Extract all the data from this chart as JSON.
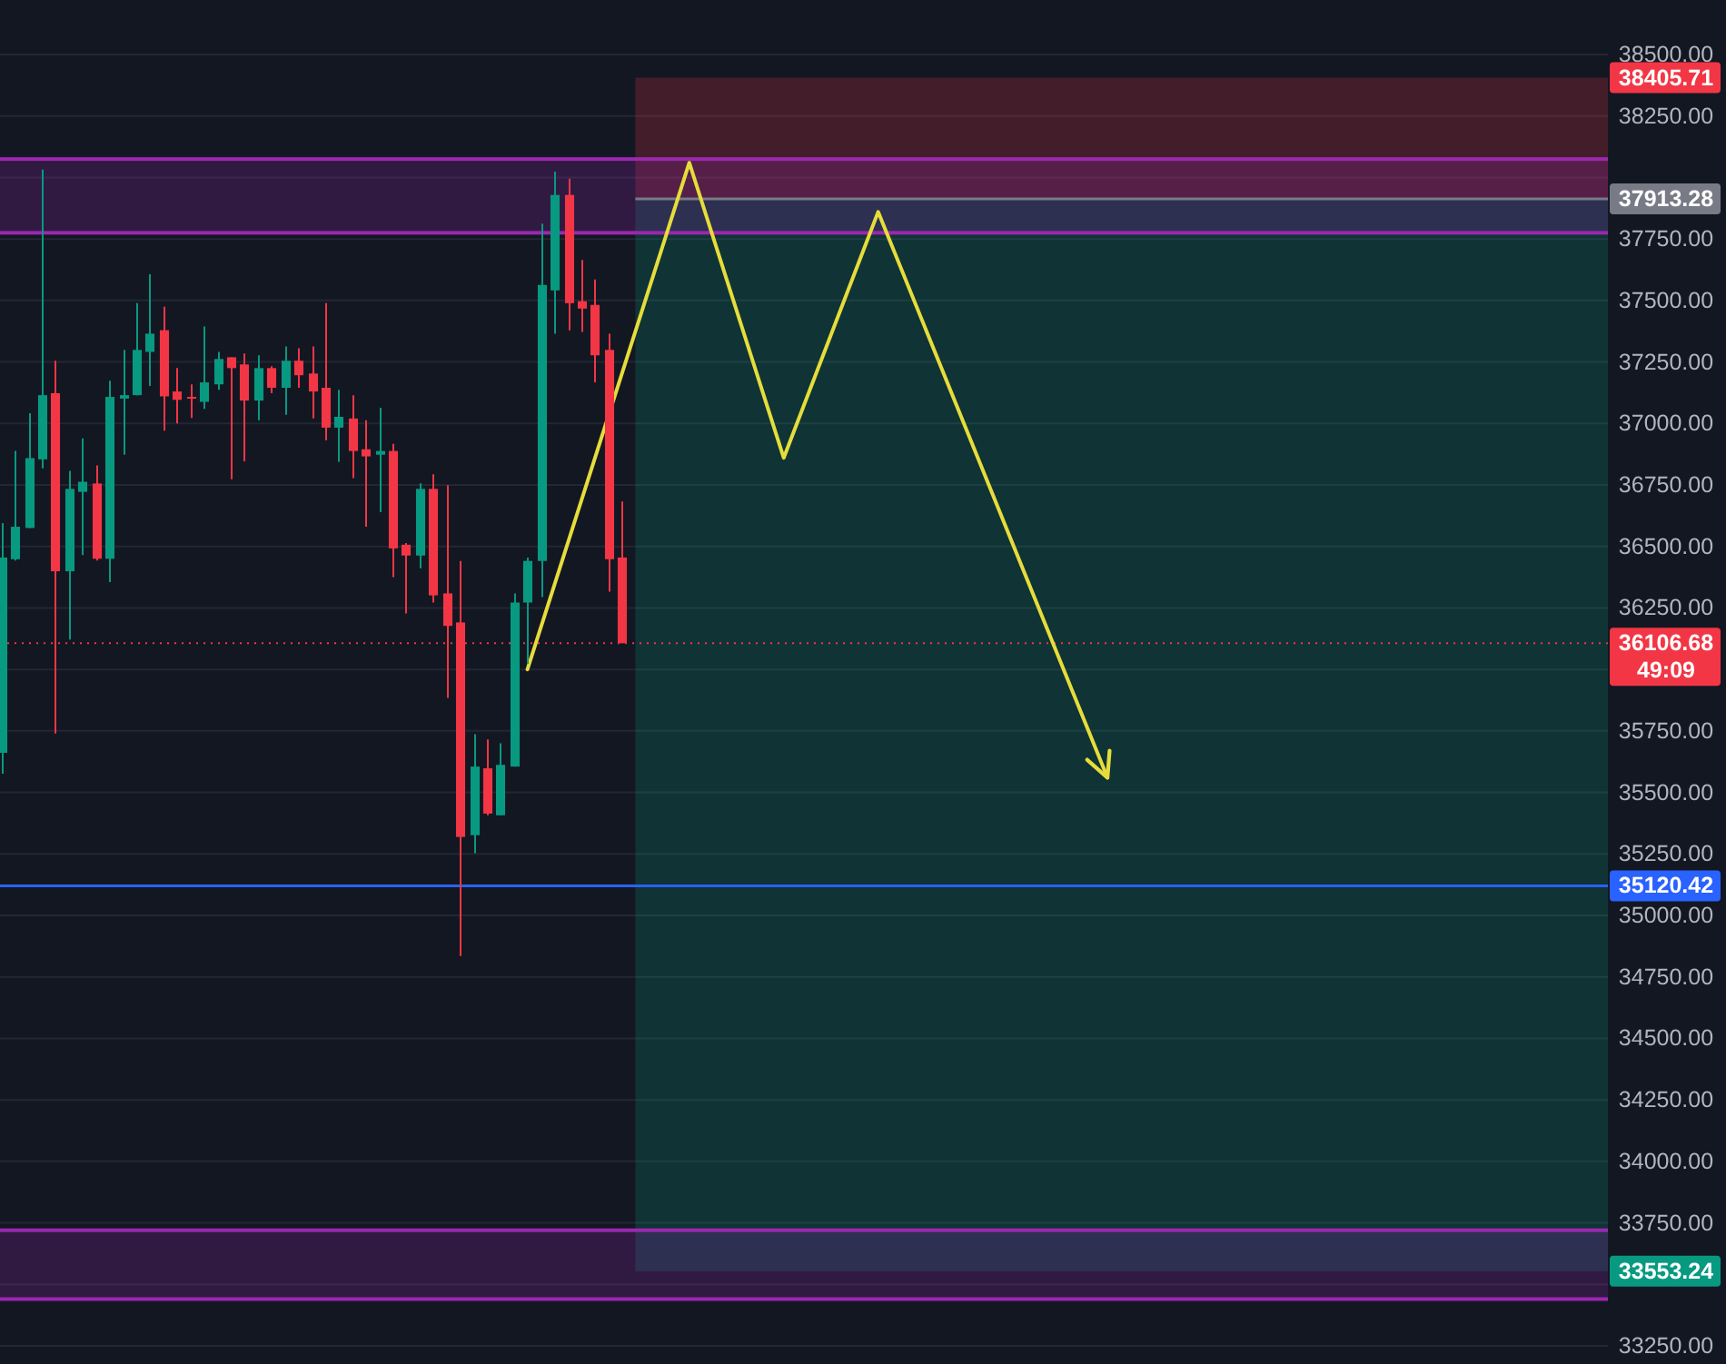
{
  "chart_data": {
    "type": "candlestick",
    "categories": [
      null,
      null,
      null,
      null,
      null,
      null,
      null,
      null,
      null,
      null,
      null,
      null,
      null,
      null,
      null,
      null,
      null,
      null,
      null,
      null,
      null,
      null,
      null,
      null,
      null,
      null,
      null,
      null,
      null,
      null,
      null,
      null,
      null,
      null,
      null,
      null,
      null,
      null,
      null,
      null,
      null,
      null,
      null,
      null,
      null,
      null,
      null,
      null,
      null,
      null,
      null,
      null,
      null,
      null,
      null,
      null,
      null,
      null,
      null,
      null,
      null,
      null,
      null,
      null,
      null,
      null,
      null,
      null,
      null,
      null,
      null,
      null,
      null,
      null,
      null,
      null,
      null,
      null,
      null,
      null,
      null,
      null,
      null,
      null,
      null,
      null,
      null,
      null,
      null,
      null,
      null,
      null,
      null,
      null,
      null,
      null,
      null,
      null,
      null,
      null,
      null,
      null,
      null,
      null,
      null,
      null,
      null,
      null,
      null,
      null,
      null,
      null,
      null,
      null,
      null,
      null,
      null,
      null,
      null,
      null
    ],
    "ohlc": [
      [
        35661,
        36595,
        35576,
        36455
      ],
      [
        36448,
        36888,
        36443,
        36580
      ],
      [
        36575,
        37042,
        36575,
        36859
      ],
      [
        36854,
        38032,
        36817,
        37115
      ],
      [
        37123,
        37255,
        35739,
        36399
      ],
      [
        36399,
        36807,
        36121,
        36734
      ],
      [
        36722,
        36939,
        36465,
        36763
      ],
      [
        36756,
        36829,
        36443,
        36450
      ],
      [
        36450,
        37174,
        36355,
        37108
      ],
      [
        37101,
        37299,
        36873,
        37115
      ],
      [
        37115,
        37489,
        37115,
        37299
      ],
      [
        37291,
        37607,
        37152,
        37365
      ],
      [
        37379,
        37475,
        36971,
        37110
      ],
      [
        37130,
        37225,
        37000,
        37096
      ],
      [
        37108,
        37159,
        37022,
        37103
      ],
      [
        37088,
        37394,
        37059,
        37167
      ],
      [
        37159,
        37291,
        37137,
        37262
      ],
      [
        37269,
        37269,
        36773,
        37225
      ],
      [
        37240,
        37284,
        36846,
        37093
      ],
      [
        37093,
        37277,
        37013,
        37225
      ],
      [
        37225,
        37233,
        37123,
        37145
      ],
      [
        37145,
        37313,
        37035,
        37255
      ],
      [
        37255,
        37306,
        37145,
        37196
      ],
      [
        37203,
        37313,
        37020,
        37130
      ],
      [
        37145,
        37489,
        36932,
        36983
      ],
      [
        36983,
        37137,
        36844,
        37027
      ],
      [
        37020,
        37115,
        36778,
        36888
      ],
      [
        36895,
        37013,
        36580,
        36866
      ],
      [
        36873,
        37064,
        36639,
        36888
      ],
      [
        36888,
        36917,
        36375,
        36492
      ],
      [
        36507,
        36514,
        36228,
        36463
      ],
      [
        36463,
        36756,
        36411,
        36734
      ],
      [
        36734,
        36793,
        36272,
        36301
      ],
      [
        36309,
        36749,
        35884,
        36177
      ],
      [
        36191,
        36441,
        34835,
        35319
      ],
      [
        35326,
        35737,
        35253,
        35605
      ],
      [
        35598,
        35715,
        35407,
        35414
      ],
      [
        35407,
        35700,
        35407,
        35612
      ],
      [
        35605,
        36309,
        35605,
        36272
      ],
      [
        36272,
        36455,
        36023,
        36441
      ],
      [
        36441,
        37812,
        36294,
        37563
      ],
      [
        37541,
        38024,
        37365,
        37929
      ],
      [
        37929,
        37995,
        37379,
        37489
      ],
      [
        37497,
        37665,
        37372,
        37467
      ],
      [
        37482,
        37585,
        37167,
        37277
      ],
      [
        37299,
        37365,
        36316,
        36448
      ],
      [
        36455,
        36683,
        36106.68,
        36106.68
      ],
      null,
      null,
      null,
      null,
      null,
      null,
      null,
      null,
      null,
      null,
      null,
      null,
      null,
      null,
      null,
      null,
      null,
      null,
      null,
      null,
      null,
      null,
      null,
      null,
      null,
      null,
      null,
      null,
      null,
      null,
      null,
      null,
      null,
      null,
      null,
      null,
      null,
      null,
      null,
      null,
      null,
      null,
      null,
      null,
      null,
      null,
      null,
      null,
      null,
      null,
      null,
      null,
      null,
      null,
      null,
      null,
      null,
      null,
      null,
      null,
      null,
      null,
      null,
      null,
      null,
      null,
      null,
      null,
      null,
      null,
      null,
      null,
      null
    ],
    "colors": [
      "#089981",
      "#089981",
      "#089981",
      "#089981",
      "#f23645",
      "#089981",
      "#089981",
      "#f23645",
      "#089981",
      "#089981",
      "#089981",
      "#089981",
      "#f23645",
      "#f23645",
      "#f23645",
      "#089981",
      "#089981",
      "#f23645",
      "#f23645",
      "#089981",
      "#f23645",
      "#089981",
      "#f23645",
      "#f23645",
      "#f23645",
      "#089981",
      "#f23645",
      "#f23645",
      "#089981",
      "#f23645",
      "#f23645",
      "#089981",
      "#f23645",
      "#f23645",
      "#f23645",
      "#089981",
      "#f23645",
      "#089981",
      "#089981",
      "#089981",
      "#089981",
      "#089981",
      "#f23645",
      "#f23645",
      "#f23645",
      "#f23645",
      "#f23645",
      null,
      null,
      null,
      null,
      null,
      null,
      null,
      null,
      null,
      null,
      null,
      null,
      null,
      null,
      null,
      null,
      null,
      null,
      null,
      null,
      null,
      null,
      null,
      null,
      null,
      null,
      null,
      null,
      null,
      null,
      null,
      null,
      null,
      null,
      null,
      null,
      null,
      null,
      null,
      null,
      null,
      null,
      null,
      null,
      null,
      null,
      null,
      null,
      null,
      null,
      null,
      null,
      null,
      null,
      null,
      null,
      null,
      null,
      null,
      null,
      null,
      null,
      null,
      null,
      null,
      null,
      null,
      null,
      null,
      null,
      null,
      null,
      null
    ],
    "series": [
      {
        "type": "line",
        "color": "#e6dd3b",
        "values": [
          null,
          null,
          null,
          null,
          null,
          null,
          null,
          null,
          null,
          null,
          null,
          null,
          null,
          null,
          null,
          null,
          null,
          null,
          null,
          null,
          null,
          null,
          null,
          null,
          null,
          null,
          null,
          null,
          null,
          null,
          null,
          null,
          null,
          null,
          null,
          null,
          null,
          null,
          null,
          36000,
          null,
          null,
          null,
          null,
          null,
          null,
          null,
          null,
          null,
          null,
          null,
          38060,
          null,
          null,
          null,
          null,
          null,
          null,
          36860,
          null,
          null,
          null,
          null,
          null,
          null,
          37860,
          null,
          null,
          null,
          null,
          null,
          null,
          null,
          null,
          null,
          null,
          null,
          null,
          null,
          null,
          null,
          null,
          35560,
          null,
          null,
          null,
          null,
          null,
          null,
          null,
          null,
          null,
          null,
          null,
          null,
          null,
          null,
          null,
          null,
          null,
          null,
          null,
          null,
          null,
          null,
          null,
          null,
          null,
          null,
          null,
          null,
          null,
          null,
          null,
          null,
          null,
          null,
          null,
          null,
          null
        ]
      }
    ],
    "ylim": [
      33250,
      38500
    ],
    "yticks": [
      {
        "value": 38500,
        "label": "38500.00"
      },
      {
        "value": 38250,
        "label": "38250.00"
      },
      {
        "value": 38000,
        "label": null
      },
      {
        "value": 37750,
        "label": "37750.00"
      },
      {
        "value": 37500,
        "label": "37500.00"
      },
      {
        "value": 37250,
        "label": "37250.00"
      },
      {
        "value": 37000,
        "label": "37000.00"
      },
      {
        "value": 36750,
        "label": "36750.00"
      },
      {
        "value": 36500,
        "label": "36500.00"
      },
      {
        "value": 36250,
        "label": "36250.00"
      },
      {
        "value": 36000,
        "label": null
      },
      {
        "value": 35750,
        "label": "35750.00"
      },
      {
        "value": 35500,
        "label": "35500.00"
      },
      {
        "value": 35250,
        "label": "35250.00"
      },
      {
        "value": 35000,
        "label": "35000.00"
      },
      {
        "value": 34750,
        "label": "34750.00"
      },
      {
        "value": 34500,
        "label": "34500.00"
      },
      {
        "value": 34250,
        "label": "34250.00"
      },
      {
        "value": 34000,
        "label": "34000.00"
      },
      {
        "value": 33750,
        "label": "33750.00"
      },
      {
        "value": 33500,
        "label": null
      },
      {
        "value": 33250,
        "label": "33250.00"
      }
    ],
    "grid": "y",
    "tick_labels": "y",
    "ref_lines": [
      {
        "axis": "y",
        "value": 36106.68,
        "label": "36106.68\n49:09",
        "color": "#f23645",
        "line_style": "dotted"
      },
      {
        "axis": "y",
        "value": 35120.42,
        "label": "35120.42",
        "color": "#2962ff"
      },
      {
        "axis": "y",
        "value": 37913.28,
        "label": "37913.28",
        "color": "#787b86"
      }
    ],
    "bands": [
      {
        "axis": "y",
        "from": 37913.28,
        "to": 38405.71,
        "label": "38405.71",
        "color": "#f23645"
      },
      {
        "axis": "y",
        "from": 37913.28,
        "to": 33553.24,
        "label": "33553.24",
        "color": "#089981"
      },
      {
        "axis": "y",
        "from": 37775,
        "to": 38075,
        "color": "#9c27b0"
      },
      {
        "axis": "y",
        "from": 33440,
        "to": 33720,
        "color": "#9c27b0"
      }
    ]
  }
}
